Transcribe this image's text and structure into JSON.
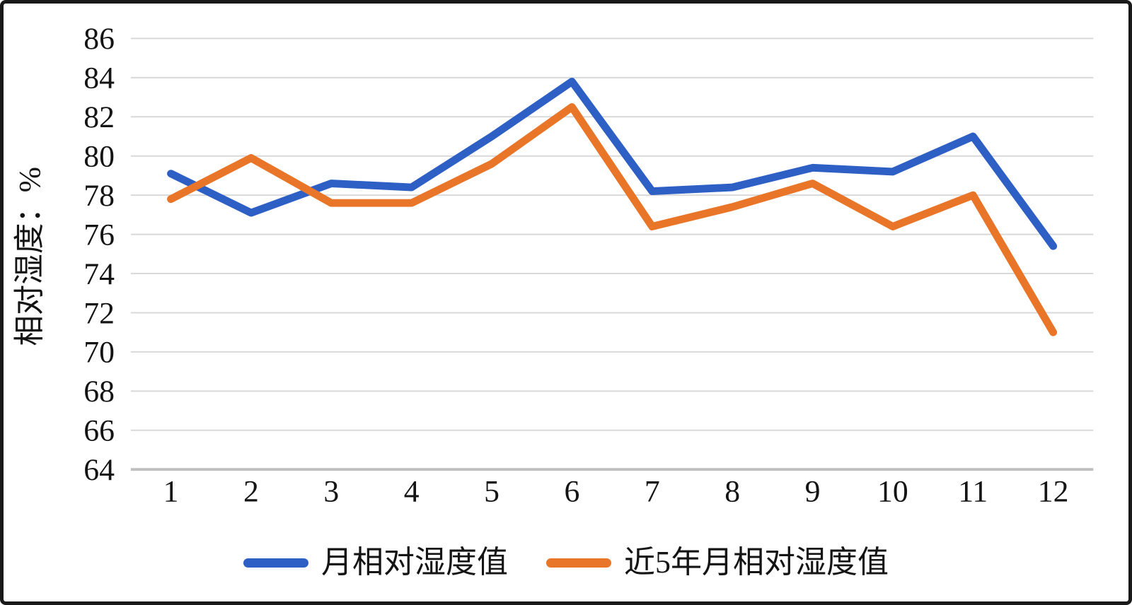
{
  "chart_data": {
    "type": "line",
    "title": "",
    "ylabel": "相对湿度：%",
    "xlabel": "",
    "categories": [
      "1",
      "2",
      "3",
      "4",
      "5",
      "6",
      "7",
      "8",
      "9",
      "10",
      "11",
      "12"
    ],
    "y_ticks": [
      86,
      84,
      82,
      80,
      78,
      76,
      74,
      72,
      70,
      68,
      66,
      64
    ],
    "ylim": [
      64,
      86
    ],
    "grid": true,
    "legend_position": "bottom-center",
    "series": [
      {
        "name": "月相对湿度值",
        "color": "#2E5FC4",
        "values": [
          79.1,
          77.1,
          78.6,
          78.4,
          81.0,
          83.8,
          78.2,
          78.4,
          79.4,
          79.2,
          81.0,
          75.4
        ]
      },
      {
        "name": "近5年月相对湿度值",
        "color": "#E97528",
        "values": [
          77.8,
          79.9,
          77.6,
          77.6,
          79.6,
          82.5,
          76.4,
          77.4,
          78.6,
          76.4,
          78.0,
          71.0
        ]
      }
    ]
  },
  "colors": {
    "gridline": "#D9D9D9",
    "axis_line": "#BFBFBF",
    "text": "#141414",
    "frame_border": "#1A1A1A",
    "background": "#FFFFFF"
  }
}
